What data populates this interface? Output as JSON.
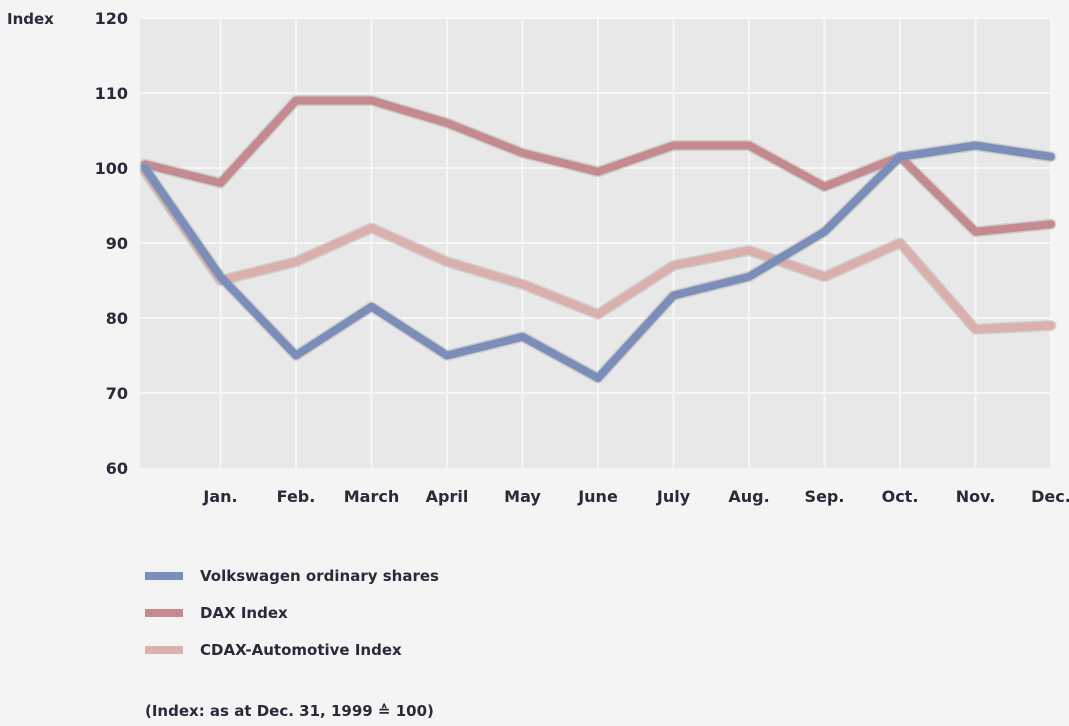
{
  "chart_data": {
    "type": "line",
    "ylabel": "Index",
    "ylim": [
      60,
      120
    ],
    "yticks": [
      60,
      70,
      80,
      90,
      100,
      110,
      120
    ],
    "categories": [
      "",
      "Jan.",
      "Feb.",
      "March",
      "April",
      "May",
      "June",
      "July",
      "Aug.",
      "Sep.",
      "Oct.",
      "Nov.",
      "Dec."
    ],
    "grid": true,
    "legend_position": "bottom",
    "series": [
      {
        "name": "Volkswagen ordinary shares",
        "color": "#7b8db9",
        "values": [
          100,
          85.5,
          75,
          81.5,
          75,
          77.5,
          72,
          83,
          85.5,
          91.5,
          101.5,
          103,
          101.5
        ]
      },
      {
        "name": "DAX Index",
        "color": "#c48a90",
        "values": [
          100.5,
          98,
          109,
          109,
          106,
          102,
          99.5,
          103,
          103,
          97.5,
          101.5,
          91.5,
          92.5
        ]
      },
      {
        "name": "CDAX-Automotive Index",
        "color": "#dbb0ac",
        "values": [
          99.5,
          85,
          87.5,
          92,
          87.5,
          84.5,
          80.5,
          87,
          89,
          85.5,
          90,
          78.5,
          79
        ]
      }
    ],
    "note": "(Index: as at Dec. 31, 1999 ≙ 100)"
  }
}
